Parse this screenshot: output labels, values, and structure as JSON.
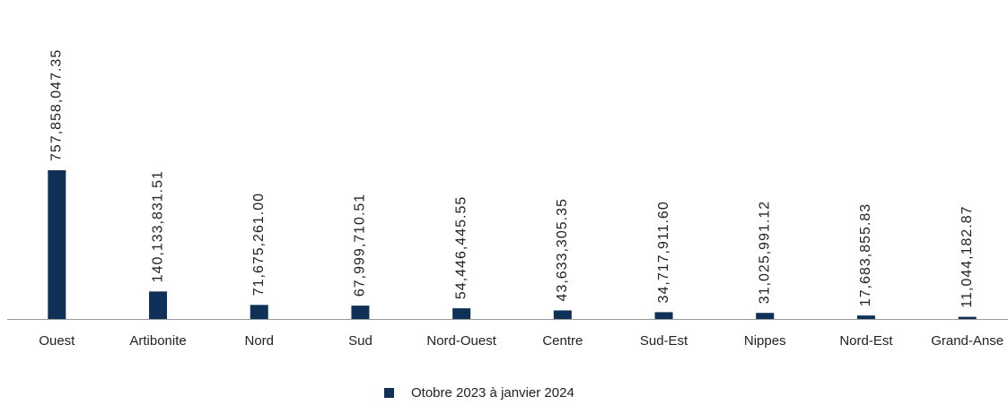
{
  "chart_data": {
    "type": "bar",
    "categories": [
      "Ouest",
      "Artibonite",
      "Nord",
      "Sud",
      "Nord-Ouest",
      "Centre",
      "Sud-Est",
      "Nippes",
      "Nord-Est",
      "Grand-Anse"
    ],
    "series": [
      {
        "name": "Otobre 2023 à janvier 2024",
        "color": "#0f3157",
        "values": [
          757858047.35,
          140133831.51,
          71675261.0,
          67999710.51,
          54446445.55,
          43633305.35,
          34717911.6,
          31025991.12,
          17683855.83,
          11044182.87
        ],
        "value_labels": [
          "757,858,047.35",
          "140,133,831.51",
          "71,675,261.00",
          "67,999,710.51",
          "54,446,445.55",
          "43,633,305.35",
          "34,717,911.60",
          "31,025,991.12",
          "17,683,855.83",
          "11,044,182.87"
        ]
      }
    ],
    "legend": "bottom"
  }
}
